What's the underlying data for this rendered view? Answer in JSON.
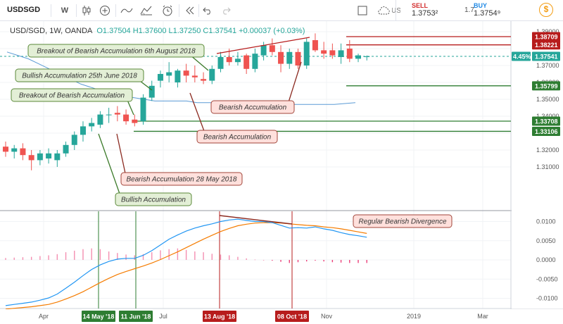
{
  "toolbar": {
    "symbol": "USDSGD",
    "interval_btn": "W",
    "sell_label": "SELL",
    "sell_price": "1.3753²",
    "spread": "1.7",
    "buy_label": "BUY",
    "buy_price": "1.3754⁹",
    "dollar_icon": "$",
    "truncated_label": "US"
  },
  "legend": {
    "title": "USD/SGD, 1W, OANDA",
    "ohlc": "O1.37504 H1.37600 L1.37250 C1.37541 +0.00037 (+0.03%)"
  },
  "colors": {
    "up": "#26a69a",
    "down": "#ef5350",
    "sma_blue": "#5b9bd5",
    "macd_blue": "#2196f3",
    "signal_orange": "#f57c00",
    "resistance": "#b71c1c",
    "support": "#2e7d32",
    "note_bg": "#ffe0dc",
    "note_bg_green": "#e3efd6"
  },
  "chart_data": [
    {
      "type": "candlestick",
      "title": "USD/SGD, 1W, OANDA",
      "x_tick_labels": [
        "Apr",
        "Jul",
        "Oct",
        "Nov",
        "2019",
        "Mar"
      ],
      "y_tick_labels": [
        "1.39000",
        "1.37000",
        "1.36000",
        "1.35000",
        "1.34000",
        "1.32000",
        "1.31000"
      ],
      "ylim": [
        1.3045,
        1.3925
      ],
      "price_tags": {
        "resistance": [
          "1.38709",
          "1.38221"
        ],
        "current": "1.37541",
        "current_change": "4.45%",
        "support": [
          "1.35799",
          "1.33708",
          "1.33106"
        ]
      },
      "candles": [
        {
          "o": 1.322,
          "h": 1.325,
          "l": 1.316,
          "c": 1.319
        },
        {
          "o": 1.319,
          "h": 1.323,
          "l": 1.315,
          "c": 1.321
        },
        {
          "o": 1.321,
          "h": 1.324,
          "l": 1.314,
          "c": 1.317
        },
        {
          "o": 1.317,
          "h": 1.32,
          "l": 1.308,
          "c": 1.314
        },
        {
          "o": 1.314,
          "h": 1.32,
          "l": 1.311,
          "c": 1.318
        },
        {
          "o": 1.315,
          "h": 1.321,
          "l": 1.312,
          "c": 1.318
        },
        {
          "o": 1.314,
          "h": 1.32,
          "l": 1.31,
          "c": 1.318
        },
        {
          "o": 1.318,
          "h": 1.325,
          "l": 1.316,
          "c": 1.323
        },
        {
          "o": 1.323,
          "h": 1.331,
          "l": 1.32,
          "c": 1.329
        },
        {
          "o": 1.329,
          "h": 1.337,
          "l": 1.325,
          "c": 1.334
        },
        {
          "o": 1.334,
          "h": 1.339,
          "l": 1.331,
          "c": 1.336
        },
        {
          "o": 1.335,
          "h": 1.343,
          "l": 1.333,
          "c": 1.341
        },
        {
          "o": 1.341,
          "h": 1.345,
          "l": 1.336,
          "c": 1.341
        },
        {
          "o": 1.342,
          "h": 1.346,
          "l": 1.337,
          "c": 1.341
        },
        {
          "o": 1.341,
          "h": 1.344,
          "l": 1.335,
          "c": 1.337
        },
        {
          "o": 1.338,
          "h": 1.341,
          "l": 1.334,
          "c": 1.336
        },
        {
          "o": 1.337,
          "h": 1.353,
          "l": 1.335,
          "c": 1.351
        },
        {
          "o": 1.351,
          "h": 1.361,
          "l": 1.349,
          "c": 1.358
        },
        {
          "o": 1.361,
          "h": 1.367,
          "l": 1.357,
          "c": 1.365
        },
        {
          "o": 1.364,
          "h": 1.372,
          "l": 1.36,
          "c": 1.366
        },
        {
          "o": 1.36,
          "h": 1.368,
          "l": 1.357,
          "c": 1.367
        },
        {
          "o": 1.367,
          "h": 1.371,
          "l": 1.36,
          "c": 1.364
        },
        {
          "o": 1.364,
          "h": 1.37,
          "l": 1.36,
          "c": 1.363
        },
        {
          "o": 1.362,
          "h": 1.366,
          "l": 1.359,
          "c": 1.361
        },
        {
          "o": 1.361,
          "h": 1.37,
          "l": 1.359,
          "c": 1.368
        },
        {
          "o": 1.368,
          "h": 1.378,
          "l": 1.366,
          "c": 1.375
        },
        {
          "o": 1.375,
          "h": 1.38,
          "l": 1.37,
          "c": 1.372
        },
        {
          "o": 1.372,
          "h": 1.378,
          "l": 1.37,
          "c": 1.374
        },
        {
          "o": 1.376,
          "h": 1.377,
          "l": 1.365,
          "c": 1.368
        },
        {
          "o": 1.368,
          "h": 1.38,
          "l": 1.366,
          "c": 1.377
        },
        {
          "o": 1.376,
          "h": 1.384,
          "l": 1.373,
          "c": 1.382
        },
        {
          "o": 1.382,
          "h": 1.386,
          "l": 1.376,
          "c": 1.378
        },
        {
          "o": 1.378,
          "h": 1.382,
          "l": 1.366,
          "c": 1.371
        },
        {
          "o": 1.371,
          "h": 1.38,
          "l": 1.368,
          "c": 1.378
        },
        {
          "o": 1.378,
          "h": 1.38,
          "l": 1.368,
          "c": 1.37
        },
        {
          "o": 1.37,
          "h": 1.386,
          "l": 1.368,
          "c": 1.384
        },
        {
          "o": 1.385,
          "h": 1.389,
          "l": 1.378,
          "c": 1.379
        },
        {
          "o": 1.379,
          "h": 1.384,
          "l": 1.374,
          "c": 1.377
        },
        {
          "o": 1.379,
          "h": 1.383,
          "l": 1.374,
          "c": 1.376
        },
        {
          "o": 1.375,
          "h": 1.383,
          "l": 1.371,
          "c": 1.379
        },
        {
          "o": 1.38,
          "h": 1.385,
          "l": 1.372,
          "c": 1.374
        },
        {
          "o": 1.374,
          "h": 1.377,
          "l": 1.372,
          "c": 1.376
        },
        {
          "o": 1.375,
          "h": 1.376,
          "l": 1.373,
          "c": 1.3754
        }
      ],
      "moving_average": [
        1.378,
        1.376,
        1.374,
        1.371,
        1.368,
        1.365,
        1.362,
        1.359,
        1.357,
        1.355,
        1.353,
        1.352,
        1.351,
        1.35,
        1.349,
        1.349,
        1.349,
        1.349,
        1.348,
        1.348,
        1.348,
        1.348,
        1.347,
        1.347,
        1.347,
        1.347,
        1.347,
        1.347,
        1.347,
        1.347,
        1.347,
        1.347,
        1.3475,
        1.348
      ],
      "annotations": [
        "Breakout of Bearish Accumulation 6th August 2018",
        "Bullish Accumulation 25th June 2018",
        "Breakout of Bearish Accumulation",
        "Bearish Accumulation",
        "Bearish Accumulation",
        "Bearish Accumulation 28 May 2018",
        "Bullish Accumulation"
      ]
    },
    {
      "type": "line",
      "y_tick_labels": [
        "0.0100",
        "0.0050",
        "0.0000",
        "-0.0050",
        "-0.0100"
      ],
      "ylim": [
        -0.0135,
        0.0135
      ],
      "series": [
        {
          "values": [
            -0.0119,
            -0.0116,
            -0.0113,
            -0.011,
            -0.0105,
            -0.0099,
            -0.0089,
            -0.0074,
            -0.0058,
            -0.0041,
            -0.0025,
            -0.0013,
            -0.0004,
            0.0002,
            0.0004,
            0.0004,
            0.0012,
            0.0024,
            0.0039,
            0.0054,
            0.0065,
            0.0075,
            0.0083,
            0.0089,
            0.0094,
            0.01,
            0.0104,
            0.0106,
            0.0103,
            0.01,
            0.01,
            0.0097,
            0.009,
            0.0083,
            0.0084,
            0.0083,
            0.0086,
            0.0081,
            0.0077,
            0.0071,
            0.0066,
            0.0063,
            0.0059
          ]
        },
        {
          "values": [
            -0.0128,
            -0.0126,
            -0.0124,
            -0.0122,
            -0.0119,
            -0.0116,
            -0.011,
            -0.0102,
            -0.0093,
            -0.0083,
            -0.0071,
            -0.0059,
            -0.0048,
            -0.0038,
            -0.003,
            -0.0023,
            -0.0016,
            -0.0008,
            0.0001,
            0.0011,
            0.0021,
            0.0032,
            0.0043,
            0.0054,
            0.0064,
            0.0074,
            0.0082,
            0.0089,
            0.0093,
            0.0096,
            0.0097,
            0.0097,
            0.0096,
            0.0094,
            0.0092,
            0.009,
            0.0089,
            0.0086,
            0.0084,
            0.0081,
            0.0077,
            0.0073,
            0.0069
          ]
        }
      ],
      "histogram": [
        0.0005,
        0.0006,
        0.0007,
        0.0008,
        0.001,
        0.0012,
        0.0015,
        0.002,
        0.0024,
        0.0028,
        0.003,
        0.0028,
        0.0022,
        0.0018,
        0.0014,
        0.0012,
        0.0015,
        0.002,
        0.0025,
        0.0028,
        0.003,
        0.0026,
        0.0022,
        0.002,
        0.0016,
        0.0014,
        0.0012,
        0.0008,
        0.0004,
        0.0001,
        0.0,
        -0.0002,
        -0.0005,
        -0.0008,
        -0.0006,
        -0.0004,
        -0.0002,
        -0.0004,
        -0.0006,
        -0.0007,
        -0.0008,
        -0.0008,
        -0.0008
      ],
      "annotations": [
        "Regular Bearish Divergence"
      ]
    }
  ],
  "time_axis": {
    "month_labels": [
      "Apr",
      "Jul",
      "Nov",
      "2019",
      "Mar"
    ],
    "date_markers": [
      {
        "label": "14 May '18",
        "kind": "green"
      },
      {
        "label": "11 Jun '18",
        "kind": "green"
      },
      {
        "label": "13 Aug '18",
        "kind": "red"
      },
      {
        "label": "08 Oct '18",
        "kind": "red"
      }
    ]
  }
}
